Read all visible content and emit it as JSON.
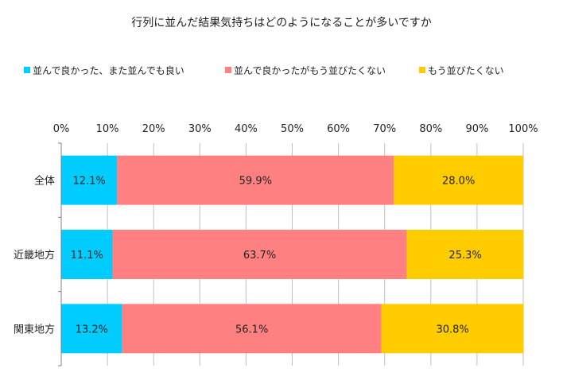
{
  "chart_data": {
    "type": "bar",
    "orientation": "horizontal",
    "stacked": "percent",
    "title": "行列に並んだ結果気持ちはどのようになることが多いですか",
    "categories": [
      "全体",
      "近畿地方",
      "関東地方"
    ],
    "series": [
      {
        "name": "並んで良かった、また並んでも良い",
        "color": "#00ccff",
        "values": [
          12.1,
          11.1,
          13.2
        ]
      },
      {
        "name": "並んで良かったがもう並びたくない",
        "color": "#ff8080",
        "values": [
          59.9,
          63.7,
          56.1
        ]
      },
      {
        "name": "もう並びたくない",
        "color": "#ffcc00",
        "values": [
          28.0,
          25.3,
          30.8
        ]
      }
    ],
    "xlim": [
      0,
      100
    ],
    "xticks": [
      "0%",
      "10%",
      "20%",
      "30%",
      "40%",
      "50%",
      "60%",
      "70%",
      "80%",
      "90%",
      "100%"
    ],
    "value_format": "0.0%",
    "legend_position": "top",
    "grid": true,
    "gridline_color": "#c0c0c0"
  }
}
